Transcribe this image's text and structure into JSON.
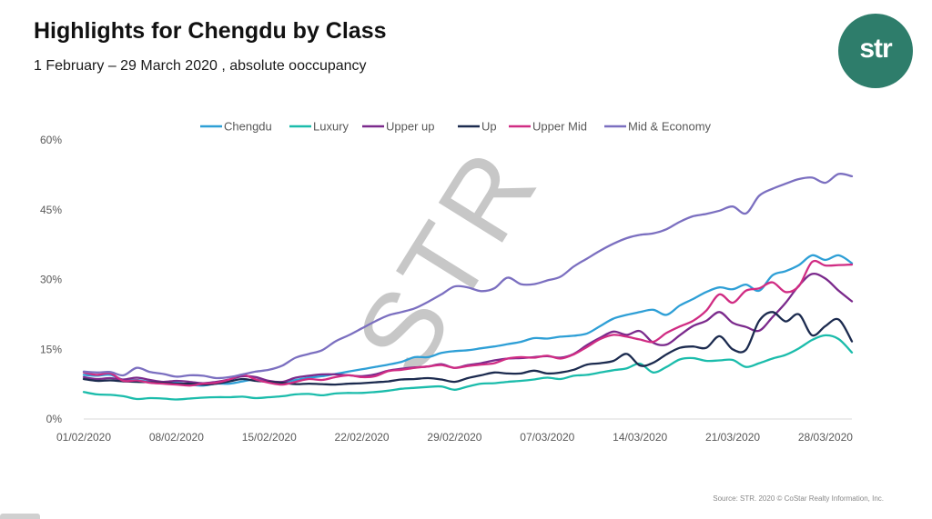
{
  "header": {
    "title": "Highlights for Chengdu by Class",
    "subtitle": "1 February – 29 March 2020 , absolute ooccupancy"
  },
  "logo": {
    "text": "str",
    "color": "#2e7d6b"
  },
  "watermark": "STR",
  "source": "Source: STR. 2020 © CoStar Realty Information, Inc.",
  "chart_data": {
    "type": "line",
    "title": "Highlights for Chengdu by Class",
    "subtitle": "1 February – 29 March 2020 , absolute ooccupancy",
    "xlabel": "",
    "ylabel": "",
    "ylim": [
      0,
      60
    ],
    "yticks": [
      0,
      15,
      30,
      45,
      60
    ],
    "ytick_labels": [
      "0%",
      "15%",
      "30%",
      "45%",
      "60%"
    ],
    "xtick_labels": [
      "01/02/2020",
      "08/02/2020",
      "15/02/2020",
      "22/02/2020",
      "29/02/2020",
      "07/03/2020",
      "14/03/2020",
      "21/03/2020",
      "28/03/2020"
    ],
    "grid": false,
    "legend_position": "top",
    "series": [
      {
        "name": "Chengdu",
        "color": "#2e9fd6",
        "values": [
          9.5,
          9.3,
          9.5,
          8.4,
          8.4,
          8.0,
          7.9,
          7.8,
          7.4,
          7.2,
          7.6,
          7.6,
          8.1,
          8.5,
          8.0,
          7.9,
          8.4,
          8.9,
          9.2,
          9.7,
          10.2,
          10.7,
          11.2,
          11.7,
          12.3,
          13.3,
          13.3,
          14.2,
          14.6,
          14.8,
          15.2,
          15.6,
          16.1,
          16.6,
          17.4,
          17.3,
          17.7,
          17.9,
          18.4,
          20.0,
          21.6,
          22.4,
          23.0,
          23.5,
          22.4,
          24.4,
          25.8,
          27.3,
          28.3,
          27.9,
          28.9,
          27.6,
          30.9,
          31.8,
          33.1,
          35.2,
          34.2,
          35.2,
          33.5
        ]
      },
      {
        "name": "Luxury",
        "color": "#1bbcab",
        "values": [
          5.8,
          5.3,
          5.2,
          4.9,
          4.3,
          4.5,
          4.4,
          4.2,
          4.4,
          4.6,
          4.7,
          4.7,
          4.8,
          4.5,
          4.7,
          4.9,
          5.3,
          5.4,
          5.1,
          5.5,
          5.6,
          5.6,
          5.8,
          6.1,
          6.5,
          6.7,
          6.9,
          7.0,
          6.3,
          7.0,
          7.6,
          7.7,
          8.0,
          8.2,
          8.5,
          8.9,
          8.6,
          9.3,
          9.5,
          10.0,
          10.5,
          10.9,
          11.9,
          10.0,
          11.2,
          12.8,
          13.1,
          12.5,
          12.6,
          12.7,
          11.2,
          12.0,
          13.0,
          13.8,
          15.2,
          17.0,
          18.0,
          17.2,
          14.3
        ]
      },
      {
        "name": "Upper up",
        "color": "#7b2a8c",
        "values": [
          9.0,
          8.6,
          8.8,
          8.5,
          8.9,
          8.4,
          8.0,
          8.2,
          8.0,
          7.7,
          8.0,
          8.5,
          9.2,
          9.0,
          8.2,
          8.0,
          8.9,
          9.3,
          9.6,
          9.6,
          9.4,
          9.2,
          9.6,
          10.4,
          10.8,
          11.1,
          11.3,
          11.8,
          11.0,
          11.6,
          12.0,
          12.6,
          13.0,
          13.1,
          13.3,
          13.5,
          13.2,
          14.0,
          15.9,
          17.5,
          18.8,
          18.1,
          18.9,
          16.4,
          16.0,
          18.0,
          20.0,
          21.1,
          23.0,
          20.7,
          19.8,
          19.0,
          21.9,
          25.0,
          28.7,
          31.2,
          30.2,
          27.6,
          25.3
        ]
      },
      {
        "name": "Up",
        "color": "#1c2b4f",
        "values": [
          8.6,
          8.2,
          8.3,
          8.1,
          8.0,
          7.9,
          7.8,
          7.6,
          7.6,
          7.4,
          7.6,
          8.1,
          8.6,
          8.2,
          8.0,
          7.8,
          7.5,
          7.6,
          7.5,
          7.4,
          7.6,
          7.7,
          7.9,
          8.1,
          8.5,
          8.6,
          8.8,
          8.5,
          8.0,
          8.8,
          9.4,
          10.0,
          9.8,
          9.8,
          10.4,
          9.8,
          10.0,
          10.6,
          11.7,
          12.0,
          12.5,
          14.0,
          11.5,
          12.1,
          13.9,
          15.3,
          15.6,
          15.3,
          17.8,
          15.0,
          14.9,
          21.1,
          23.0,
          21.0,
          22.5,
          18.0,
          20.0,
          21.4,
          16.7
        ]
      },
      {
        "name": "Upper Mid",
        "color": "#d02c83",
        "values": [
          10.0,
          9.5,
          9.8,
          8.2,
          8.3,
          7.8,
          7.6,
          7.4,
          7.2,
          7.6,
          7.8,
          8.5,
          9.5,
          8.5,
          7.8,
          7.4,
          8.0,
          8.6,
          8.4,
          9.0,
          9.4,
          9.0,
          9.2,
          10.3,
          10.6,
          11.0,
          11.3,
          11.6,
          11.0,
          11.4,
          11.7,
          12.0,
          13.0,
          13.3,
          13.2,
          13.6,
          13.0,
          13.9,
          15.5,
          17.2,
          18.1,
          17.7,
          17.1,
          16.6,
          18.5,
          19.9,
          21.1,
          23.3,
          26.8,
          25.0,
          27.6,
          28.1,
          29.4,
          27.3,
          28.6,
          33.8,
          33.0,
          33.1,
          33.2
        ]
      },
      {
        "name": "Mid & Economy",
        "color": "#7b6fc0",
        "values": [
          10.2,
          10.0,
          10.1,
          9.4,
          11.0,
          10.1,
          9.7,
          9.1,
          9.4,
          9.3,
          8.8,
          9.0,
          9.6,
          10.2,
          10.6,
          11.5,
          13.2,
          14.0,
          14.8,
          16.7,
          18.0,
          19.5,
          21.0,
          22.3,
          23.0,
          23.8,
          25.2,
          26.8,
          28.5,
          28.3,
          27.5,
          28.1,
          30.4,
          29.0,
          29.0,
          29.8,
          30.6,
          32.8,
          34.5,
          36.2,
          37.7,
          38.9,
          39.6,
          39.9,
          40.8,
          42.4,
          43.6,
          44.1,
          44.8,
          45.7,
          44.2,
          48.0,
          49.5,
          50.6,
          51.6,
          51.9,
          50.8,
          52.7,
          52.2
        ]
      }
    ]
  }
}
